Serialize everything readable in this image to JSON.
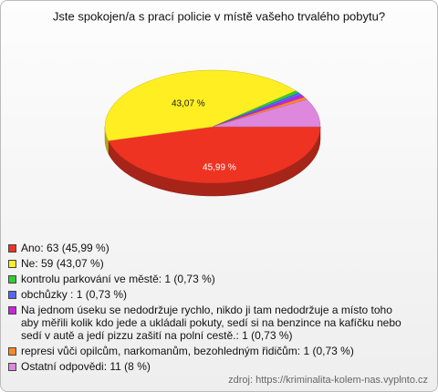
{
  "chart_data": {
    "type": "pie",
    "title": "Jste spokojen/a s prací policie v místě vašeho trvalého pobytu?",
    "categories": [
      "Ano: 63 (45,99 %)",
      "Ne: 59 (43,07 %)",
      "kontrolu parkování ve městě: 1 (0,73 %)",
      "obchůzky : 1 (0,73 %)",
      "Na jednom úseku se nedodržuje rychlo, nikdo ji tam nedodržuje a místo toho aby měřili kolik kdo jede a ukládali pokuty, sedí si na benzince na kafíčku nebo sedí v autě a jedí pizzu zašití na polní cestě.: 1 (0,73 %)",
      "represi vůči opilcům, narkomanům, bezohledným řidičům: 1 (0,73 %)",
      "Ostatní odpovědi: 11 (8 %)"
    ],
    "values": [
      45.99,
      43.07,
      0.73,
      0.73,
      0.73,
      0.73,
      8
    ],
    "value_labels": [
      "45,99 %",
      "43,07 %",
      null,
      null,
      null,
      null,
      null
    ],
    "colors": [
      "#ee3322",
      "#ffee22",
      "#33cc33",
      "#5566ff",
      "#cc22dd",
      "#ff8822",
      "#dd88dd"
    ],
    "source": "zdroj: https://kriminalita-kolem-nas.vyplnto.cz"
  }
}
